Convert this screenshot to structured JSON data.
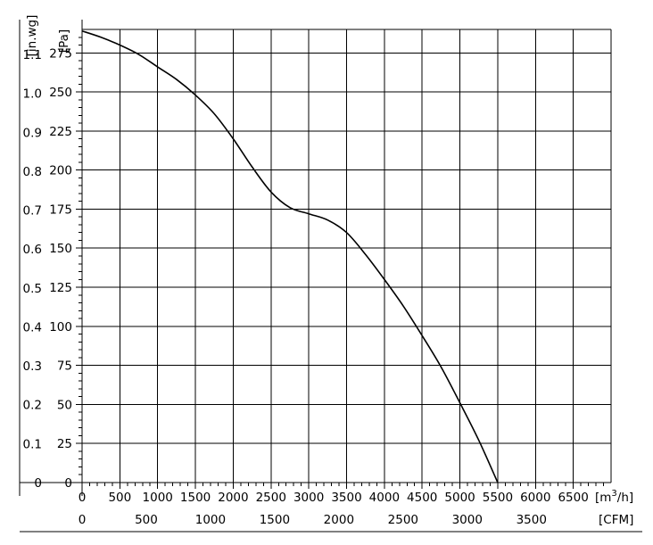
{
  "chart_data": {
    "type": "line",
    "title": "",
    "x_primary": {
      "unit_label": "[m³/h]",
      "range": [
        0,
        7000
      ],
      "ticks": [
        0,
        500,
        1000,
        1500,
        2000,
        2500,
        3000,
        3500,
        4000,
        4500,
        5000,
        5500,
        6000,
        6500
      ],
      "tick_labels": [
        "0",
        "500",
        "1000",
        "1500",
        "2000",
        "2500",
        "3000",
        "3500",
        "4000",
        "4500",
        "5000",
        "5500",
        "6000",
        "6500"
      ]
    },
    "x_secondary": {
      "unit_label": "[CFM]",
      "ticks": [
        0,
        500,
        1000,
        1500,
        2000,
        2500,
        3000,
        3500
      ],
      "tick_labels": [
        "0",
        "500",
        "1000",
        "1500",
        "2000",
        "2500",
        "3000",
        "3500"
      ]
    },
    "y_primary": {
      "unit_label": "[Pa]",
      "range": [
        0,
        290
      ],
      "ticks": [
        0,
        25,
        50,
        75,
        100,
        125,
        150,
        175,
        200,
        225,
        250,
        275
      ],
      "tick_labels": [
        "0",
        "25",
        "50",
        "75",
        "100",
        "125",
        "150",
        "175",
        "200",
        "225",
        "250",
        "275"
      ]
    },
    "y_secondary": {
      "unit_label": "[in.wg]",
      "ticks": [
        0,
        0.1,
        0.2,
        0.3,
        0.4,
        0.5,
        0.6,
        0.7,
        0.8,
        0.9,
        1.0,
        1.1
      ],
      "tick_labels": [
        "0",
        "0.1",
        "0.2",
        "0.3",
        "0.4",
        "0.5",
        "0.6",
        "0.7",
        "0.8",
        "0.9",
        "1.0",
        "1.1"
      ]
    },
    "grid": true,
    "series": [
      {
        "x": [
          0,
          250,
          500,
          750,
          1000,
          1250,
          1500,
          1750,
          2000,
          2250,
          2500,
          2750,
          3000,
          3250,
          3500,
          3750,
          4000,
          4250,
          4500,
          4750,
          5000,
          5250,
          5500
        ],
        "y": [
          289,
          285,
          280,
          274,
          266,
          258,
          248,
          236,
          220,
          202,
          186,
          176,
          172,
          168,
          160,
          146,
          130,
          113,
          94,
          74,
          51,
          27,
          0
        ]
      }
    ]
  }
}
